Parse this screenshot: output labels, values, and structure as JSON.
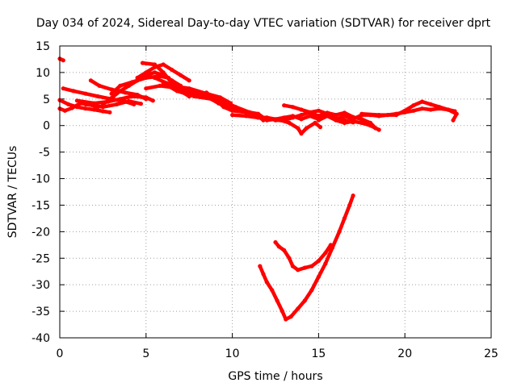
{
  "chart_data": {
    "type": "scatter",
    "title": "Day 034 of 2024, Sidereal Day-to-day VTEC variation (SDTVAR) for receiver dprt",
    "xlabel": "GPS time / hours",
    "ylabel": "SDTVAR / TECUs",
    "xlim": [
      0,
      25
    ],
    "ylim": [
      -40,
      15
    ],
    "xticks": [
      0,
      5,
      10,
      15,
      20,
      25
    ],
    "yticks": [
      15,
      10,
      5,
      0,
      -5,
      -10,
      -15,
      -20,
      -25,
      -30,
      -35,
      -40
    ],
    "grid": true,
    "series_color": "#ff0000",
    "series": [
      {
        "values": [
          [
            0.0,
            12.6
          ],
          [
            0.2,
            12.3
          ]
        ]
      },
      {
        "values": [
          [
            0.0,
            4.8
          ],
          [
            0.5,
            4.0
          ],
          [
            1.0,
            3.5
          ],
          [
            1.5,
            3.2
          ],
          [
            2.0,
            3.0
          ],
          [
            2.5,
            2.7
          ],
          [
            2.9,
            2.5
          ]
        ]
      },
      {
        "values": [
          [
            0.0,
            3.2
          ],
          [
            0.3,
            2.8
          ],
          [
            0.7,
            3.3
          ],
          [
            1.2,
            4.2
          ],
          [
            1.7,
            4.0
          ],
          [
            2.2,
            3.5
          ]
        ]
      },
      {
        "values": [
          [
            0.2,
            7.0
          ],
          [
            0.8,
            6.5
          ],
          [
            1.5,
            6.0
          ],
          [
            2.2,
            5.5
          ],
          [
            3.0,
            5.0
          ],
          [
            3.8,
            4.5
          ],
          [
            4.3,
            4.0
          ]
        ]
      },
      {
        "values": [
          [
            1.0,
            4.7
          ],
          [
            2.0,
            4.2
          ],
          [
            2.8,
            4.5
          ],
          [
            3.5,
            5.0
          ],
          [
            4.2,
            5.5
          ],
          [
            5.0,
            5.3
          ],
          [
            5.4,
            4.7
          ]
        ]
      },
      {
        "values": [
          [
            1.5,
            4.0
          ],
          [
            2.5,
            3.5
          ],
          [
            3.3,
            4.0
          ],
          [
            4.0,
            4.6
          ],
          [
            4.7,
            4.1
          ]
        ]
      },
      {
        "values": [
          [
            1.8,
            8.5
          ],
          [
            2.3,
            7.5
          ],
          [
            3.0,
            6.8
          ],
          [
            3.8,
            6.2
          ],
          [
            4.5,
            5.8
          ],
          [
            5.0,
            5.0
          ]
        ]
      },
      {
        "values": [
          [
            2.5,
            4.0
          ],
          [
            3.0,
            5.2
          ],
          [
            3.5,
            6.5
          ],
          [
            4.0,
            7.5
          ],
          [
            4.5,
            8.5
          ],
          [
            5.0,
            9.5
          ],
          [
            5.5,
            10.0
          ],
          [
            6.0,
            9.5
          ],
          [
            6.5,
            8.5
          ],
          [
            7.0,
            7.5
          ]
        ]
      },
      {
        "values": [
          [
            3.0,
            6.0
          ],
          [
            3.5,
            7.5
          ],
          [
            4.2,
            8.2
          ],
          [
            5.0,
            9.0
          ],
          [
            5.8,
            9.3
          ],
          [
            6.3,
            9.0
          ]
        ]
      },
      {
        "values": [
          [
            4.5,
            9.0
          ],
          [
            5.0,
            10.0
          ],
          [
            5.5,
            11.0
          ],
          [
            6.0,
            11.5
          ],
          [
            6.5,
            10.5
          ],
          [
            7.0,
            9.5
          ],
          [
            7.5,
            8.5
          ]
        ]
      },
      {
        "values": [
          [
            4.8,
            11.8
          ],
          [
            5.5,
            11.5
          ],
          [
            6.0,
            10.0
          ],
          [
            6.5,
            8.0
          ],
          [
            7.0,
            6.5
          ],
          [
            7.5,
            5.5
          ]
        ]
      },
      {
        "values": [
          [
            5.0,
            7.0
          ],
          [
            5.8,
            7.5
          ],
          [
            6.5,
            7.2
          ],
          [
            7.2,
            6.5
          ],
          [
            8.0,
            5.6
          ],
          [
            8.8,
            5.0
          ],
          [
            9.5,
            3.8
          ],
          [
            10.0,
            3.0
          ]
        ]
      },
      {
        "values": [
          [
            5.5,
            9.0
          ],
          [
            6.2,
            8.0
          ],
          [
            7.0,
            7.0
          ],
          [
            7.8,
            6.2
          ],
          [
            8.5,
            5.5
          ],
          [
            9.2,
            4.2
          ],
          [
            10.0,
            3.2
          ],
          [
            10.5,
            2.8
          ]
        ]
      },
      {
        "values": [
          [
            6.0,
            8.0
          ],
          [
            6.8,
            6.5
          ],
          [
            7.8,
            5.5
          ],
          [
            8.8,
            5.0
          ],
          [
            9.5,
            4.5
          ],
          [
            10.2,
            3.5
          ],
          [
            11.0,
            2.5
          ]
        ]
      },
      {
        "values": [
          [
            6.5,
            7.5
          ],
          [
            7.5,
            7.0
          ],
          [
            8.5,
            6.0
          ],
          [
            9.3,
            5.3
          ],
          [
            9.9,
            4.2
          ]
        ]
      },
      {
        "values": [
          [
            8.5,
            6.2
          ],
          [
            9.0,
            5.0
          ],
          [
            9.5,
            3.5
          ],
          [
            10.0,
            2.8
          ],
          [
            10.8,
            2.5
          ],
          [
            11.3,
            2.2
          ],
          [
            11.8,
            1.0
          ]
        ]
      },
      {
        "values": [
          [
            10.0,
            2.0
          ],
          [
            10.8,
            1.8
          ],
          [
            11.5,
            1.5
          ],
          [
            12.0,
            1.5
          ],
          [
            12.5,
            1.2
          ],
          [
            13.0,
            1.3
          ]
        ]
      },
      {
        "values": [
          [
            11.0,
            2.5
          ],
          [
            11.5,
            2.2
          ],
          [
            12.0,
            1.0
          ],
          [
            12.5,
            1.2
          ],
          [
            13.0,
            1.5
          ],
          [
            13.5,
            1.8
          ],
          [
            14.0,
            1.2
          ],
          [
            14.5,
            1.8
          ],
          [
            15.0,
            1.2
          ],
          [
            15.5,
            1.8
          ],
          [
            16.0,
            1.2
          ],
          [
            16.5,
            1.8
          ],
          [
            17.0,
            1.2
          ],
          [
            17.5,
            2.0
          ],
          [
            18.0,
            2.0
          ],
          [
            18.5,
            1.8
          ],
          [
            19.0,
            2.0
          ],
          [
            19.5,
            2.2
          ],
          [
            20.0,
            2.5
          ],
          [
            20.5,
            2.8
          ],
          [
            21.0,
            3.2
          ],
          [
            21.5,
            3.0
          ],
          [
            22.0,
            3.2
          ],
          [
            22.5,
            3.0
          ],
          [
            22.9,
            2.7
          ]
        ]
      },
      {
        "values": [
          [
            11.5,
            1.5
          ],
          [
            12.0,
            1.5
          ],
          [
            12.5,
            1.0
          ],
          [
            13.0,
            1.0
          ],
          [
            13.5,
            1.5
          ],
          [
            14.0,
            2.0
          ],
          [
            14.5,
            2.5
          ],
          [
            15.0,
            1.8
          ],
          [
            15.5,
            2.4
          ],
          [
            16.0,
            2.0
          ],
          [
            16.5,
            2.4
          ],
          [
            17.0,
            1.6
          ],
          [
            17.5,
            1.2
          ],
          [
            18.0,
            0.5
          ],
          [
            18.3,
            -0.5
          ]
        ]
      },
      {
        "values": [
          [
            13.0,
            3.8
          ],
          [
            13.5,
            3.5
          ],
          [
            14.0,
            3.0
          ],
          [
            14.5,
            2.5
          ],
          [
            15.0,
            2.8
          ],
          [
            15.5,
            2.2
          ],
          [
            16.0,
            1.5
          ],
          [
            16.5,
            1.0
          ],
          [
            17.0,
            0.6
          ]
        ]
      },
      {
        "values": [
          [
            12.8,
            1.0
          ],
          [
            13.3,
            0.5
          ],
          [
            13.8,
            -0.5
          ],
          [
            14.0,
            -1.5
          ],
          [
            14.3,
            -0.5
          ],
          [
            14.8,
            0.5
          ],
          [
            15.1,
            -0.3
          ]
        ]
      },
      {
        "values": [
          [
            15.0,
            1.0
          ],
          [
            15.5,
            1.8
          ],
          [
            16.0,
            1.0
          ],
          [
            16.5,
            0.5
          ],
          [
            17.0,
            0.8
          ],
          [
            17.5,
            0.5
          ],
          [
            18.0,
            0.0
          ],
          [
            18.5,
            -0.8
          ]
        ]
      },
      {
        "values": [
          [
            17.5,
            2.2
          ],
          [
            18.5,
            2.0
          ],
          [
            19.5,
            2.0
          ],
          [
            20.0,
            2.8
          ],
          [
            20.5,
            3.8
          ],
          [
            21.0,
            4.5
          ],
          [
            21.5,
            4.0
          ],
          [
            22.0,
            3.5
          ],
          [
            22.5,
            3.0
          ],
          [
            23.0,
            2.2
          ],
          [
            22.8,
            1.0
          ]
        ]
      },
      {
        "values": [
          [
            11.6,
            -26.5
          ],
          [
            11.8,
            -28.0
          ],
          [
            12.0,
            -29.5
          ],
          [
            12.3,
            -31.0
          ],
          [
            12.6,
            -33.0
          ],
          [
            12.9,
            -35.0
          ],
          [
            13.1,
            -36.5
          ],
          [
            13.4,
            -36.0
          ],
          [
            13.8,
            -34.5
          ],
          [
            14.2,
            -33.0
          ],
          [
            14.6,
            -31.0
          ],
          [
            15.0,
            -28.5
          ],
          [
            15.4,
            -26.0
          ],
          [
            15.8,
            -23.0
          ],
          [
            16.2,
            -20.0
          ],
          [
            16.5,
            -17.5
          ],
          [
            16.8,
            -15.0
          ],
          [
            17.0,
            -13.2
          ]
        ]
      },
      {
        "values": [
          [
            12.5,
            -22.0
          ],
          [
            12.7,
            -22.8
          ],
          [
            13.0,
            -23.5
          ],
          [
            13.3,
            -25.0
          ],
          [
            13.5,
            -26.5
          ],
          [
            13.8,
            -27.2
          ],
          [
            14.2,
            -26.8
          ],
          [
            14.6,
            -26.5
          ],
          [
            15.0,
            -25.5
          ],
          [
            15.4,
            -24.0
          ],
          [
            15.7,
            -22.5
          ]
        ]
      }
    ]
  }
}
